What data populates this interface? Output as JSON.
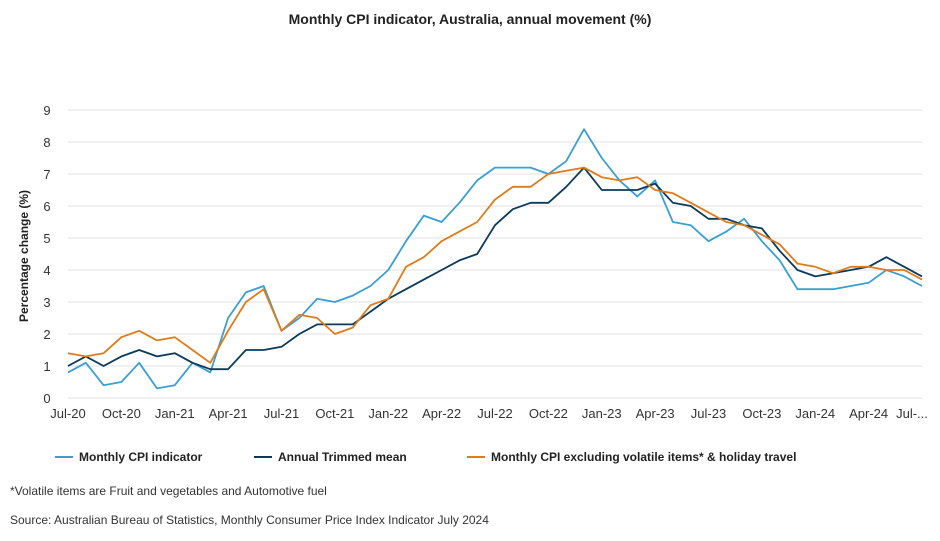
{
  "chart_data": {
    "type": "line",
    "title": "Monthly CPI indicator, Australia, annual movement (%)",
    "xlabel": "",
    "ylabel": "Percentage change (%)",
    "ylim": [
      0,
      9
    ],
    "yticks": [
      "0",
      "1",
      "2",
      "3",
      "4",
      "5",
      "6",
      "7",
      "8",
      "9"
    ],
    "grid": true,
    "x_start": "Jul-20",
    "x_end": "Jul-24",
    "xtick_labels": [
      "Jul-20",
      "Oct-20",
      "Jan-21",
      "Apr-21",
      "Jul-21",
      "Oct-21",
      "Jan-22",
      "Apr-22",
      "Jul-22",
      "Oct-22",
      "Jan-23",
      "Apr-23",
      "Jul-23",
      "Oct-23",
      "Jan-24",
      "Apr-24",
      "Jul-..."
    ],
    "legend_position": "bottom",
    "series": [
      {
        "name": "Monthly CPI indicator",
        "color": "#3a9fd2",
        "values": [
          0.8,
          1.1,
          0.4,
          0.5,
          1.1,
          0.3,
          0.4,
          1.1,
          0.8,
          2.5,
          3.3,
          3.5,
          2.1,
          2.5,
          3.1,
          3.0,
          3.2,
          3.5,
          4.0,
          4.9,
          5.7,
          5.5,
          6.1,
          6.8,
          7.2,
          7.2,
          7.2,
          7.0,
          7.4,
          8.4,
          7.5,
          6.8,
          6.3,
          6.8,
          5.5,
          5.4,
          4.9,
          5.2,
          5.6,
          4.9,
          4.3,
          3.4,
          3.4,
          3.4,
          3.5,
          3.6,
          4.0,
          3.8,
          3.5
        ]
      },
      {
        "name": "Annual Trimmed mean",
        "color": "#0b3a5b",
        "values": [
          1.0,
          1.3,
          1.0,
          1.3,
          1.5,
          1.3,
          1.4,
          1.1,
          0.9,
          0.9,
          1.5,
          1.5,
          1.6,
          2.0,
          2.3,
          2.3,
          2.3,
          2.7,
          3.1,
          3.4,
          3.7,
          4.0,
          4.3,
          4.5,
          5.4,
          5.9,
          6.1,
          6.1,
          6.6,
          7.2,
          6.5,
          6.5,
          6.5,
          6.7,
          6.1,
          6.0,
          5.6,
          5.6,
          5.4,
          5.3,
          4.6,
          4.0,
          3.8,
          3.9,
          4.0,
          4.1,
          4.4,
          4.1,
          3.8
        ]
      },
      {
        "name": "Monthly CPI excluding volatile items* & holiday travel",
        "color": "#e07b1a",
        "values": [
          1.4,
          1.3,
          1.4,
          1.9,
          2.1,
          1.8,
          1.9,
          1.5,
          1.1,
          2.1,
          3.0,
          3.4,
          2.1,
          2.6,
          2.5,
          2.0,
          2.2,
          2.9,
          3.1,
          4.1,
          4.4,
          4.9,
          5.2,
          5.5,
          6.2,
          6.6,
          6.6,
          7.0,
          7.1,
          7.2,
          6.9,
          6.8,
          6.9,
          6.5,
          6.4,
          6.1,
          5.8,
          5.5,
          5.4,
          5.1,
          4.8,
          4.2,
          4.1,
          3.9,
          4.1,
          4.1,
          4.0,
          4.0,
          3.7
        ]
      }
    ]
  },
  "footnote": "*Volatile items are Fruit and vegetables and Automotive fuel",
  "source": "Source: Australian Bureau of Statistics, Monthly Consumer Price Index Indicator July 2024"
}
